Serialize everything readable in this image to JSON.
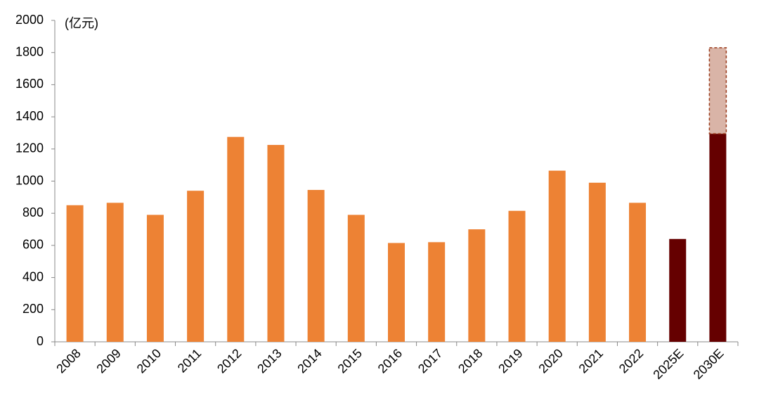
{
  "chart_data": {
    "type": "stacked_bar",
    "unit_label": "(亿元)",
    "categories": [
      "2008",
      "2009",
      "2010",
      "2011",
      "2012",
      "2013",
      "2014",
      "2015",
      "2016",
      "2017",
      "2018",
      "2019",
      "2020",
      "2021",
      "2022",
      "2025E",
      "2030E"
    ],
    "series": [
      {
        "colors": [
          "#ed8234",
          "#ed8234",
          "#ed8234",
          "#ed8234",
          "#ed8234",
          "#ed8234",
          "#ed8234",
          "#ed8234",
          "#ed8234",
          "#ed8234",
          "#ed8234",
          "#ed8234",
          "#ed8234",
          "#ed8234",
          "#ed8234",
          "#650000",
          "#650000"
        ],
        "values": [
          850,
          865,
          790,
          940,
          1275,
          1225,
          945,
          790,
          615,
          620,
          700,
          815,
          1065,
          990,
          865,
          640,
          1295
        ]
      },
      {
        "color": "#d9b4a7",
        "dashed": true,
        "values": [
          null,
          null,
          null,
          null,
          null,
          null,
          null,
          null,
          null,
          null,
          null,
          null,
          null,
          null,
          null,
          null,
          535
        ]
      }
    ],
    "ylim": [
      0,
      2000
    ],
    "yticks": [
      0,
      200,
      400,
      600,
      800,
      1000,
      1200,
      1400,
      1600,
      1800,
      2000
    ],
    "grid": false
  }
}
